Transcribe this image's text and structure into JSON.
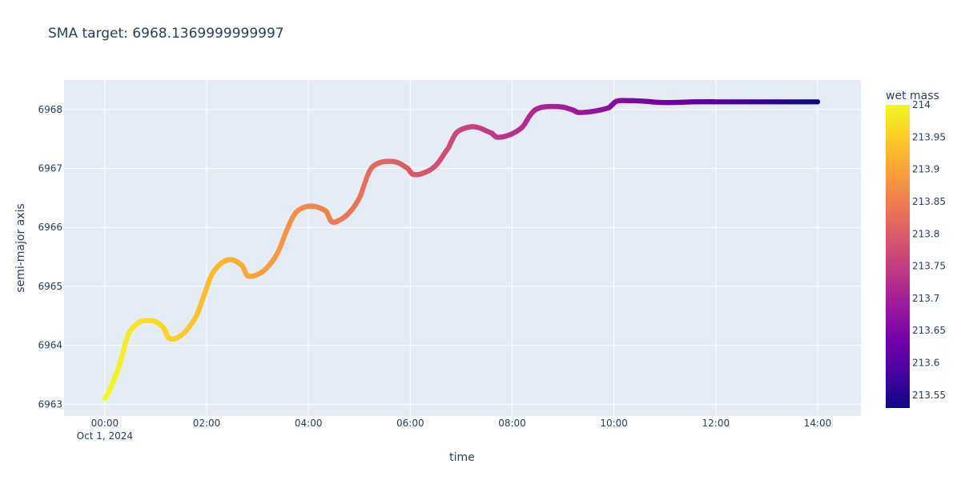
{
  "chart_data": {
    "type": "scatter",
    "title": "SMA target: 6968.1369999999997",
    "xlabel": "time",
    "ylabel": "semi-major axis",
    "x_ticks": [
      "00:00",
      "02:00",
      "04:00",
      "06:00",
      "08:00",
      "10:00",
      "12:00",
      "14:00"
    ],
    "x_tick_sublabel": "Oct 1, 2024",
    "x_range_hours": [
      -0.8,
      14.85
    ],
    "y_ticks": [
      "6963",
      "6964",
      "6965",
      "6966",
      "6967",
      "6968"
    ],
    "ylim": [
      6962.8,
      6968.5
    ],
    "grid": true,
    "colorbar": {
      "title": "wet mass",
      "ticks": [
        "214",
        "213.95",
        "213.9",
        "213.85",
        "213.8",
        "213.75",
        "213.7",
        "213.65",
        "213.6",
        "213.55"
      ],
      "range": [
        213.53,
        214.0
      ],
      "colorscale": [
        "#0d0887",
        "#46039f",
        "#7201a8",
        "#9c179e",
        "#bd3786",
        "#d8576b",
        "#ed7953",
        "#fb9f3a",
        "#fdca26",
        "#f0f921"
      ]
    },
    "series": [
      {
        "x_hours": [
          0.0,
          0.15,
          0.3,
          0.45,
          0.55,
          0.7,
          0.85,
          1.0,
          1.15,
          1.25,
          1.4,
          1.6,
          1.8,
          1.95,
          2.1,
          2.3,
          2.5,
          2.7,
          2.8,
          3.0,
          3.2,
          3.4,
          3.6,
          3.75,
          3.95,
          4.15,
          4.35,
          4.45,
          4.6,
          4.8,
          5.0,
          5.2,
          5.35,
          5.55,
          5.75,
          5.95,
          6.05,
          6.25,
          6.5,
          6.75,
          6.9,
          7.1,
          7.3,
          7.6,
          7.7,
          7.95,
          8.2,
          8.4,
          8.55,
          8.75,
          9.0,
          9.2,
          9.3,
          9.6,
          9.9,
          10.05,
          10.3,
          10.6,
          10.9,
          11.2,
          11.6,
          12.0,
          12.5,
          13.0,
          13.5,
          14.0
        ],
        "y": [
          6963.1,
          6963.35,
          6963.7,
          6964.15,
          6964.3,
          6964.4,
          6964.42,
          6964.4,
          6964.3,
          6964.13,
          6964.12,
          6964.25,
          6964.5,
          6964.85,
          6965.2,
          6965.4,
          6965.45,
          6965.35,
          6965.18,
          6965.2,
          6965.33,
          6965.58,
          6966.0,
          6966.25,
          6966.35,
          6966.35,
          6966.27,
          6966.1,
          6966.12,
          6966.25,
          6966.5,
          6966.95,
          6967.08,
          6967.12,
          6967.1,
          6967.0,
          6966.9,
          6966.92,
          6967.05,
          6967.35,
          6967.6,
          6967.69,
          6967.7,
          6967.6,
          6967.53,
          6967.57,
          6967.7,
          6967.95,
          6968.03,
          6968.05,
          6968.04,
          6967.99,
          6967.95,
          6967.97,
          6968.03,
          6968.14,
          6968.15,
          6968.14,
          6968.12,
          6968.12,
          6968.13,
          6968.13,
          6968.13,
          6968.13,
          6968.13,
          6968.13
        ],
        "wet_mass_range": [
          214.0,
          213.53
        ]
      }
    ]
  }
}
